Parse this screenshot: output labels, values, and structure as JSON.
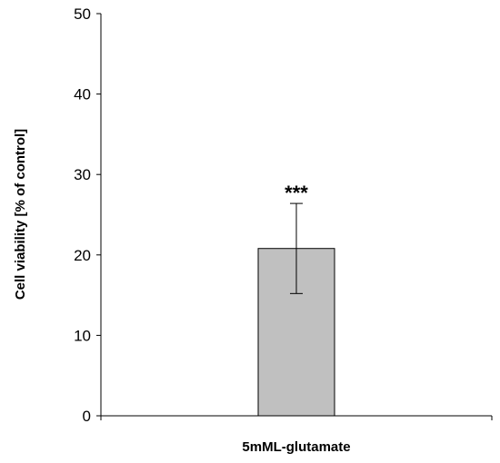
{
  "chart_data": {
    "type": "bar",
    "categories": [
      "5mML-glutamate"
    ],
    "values": [
      20.8
    ],
    "error": [
      5.6
    ],
    "annotations": [
      "***"
    ],
    "xlabel": "5mML-glutamate",
    "ylabel": "Cell viability [% of control]",
    "ylim": [
      0,
      50
    ],
    "yticks": [
      "0",
      "10",
      "20",
      "30",
      "40",
      "50"
    ],
    "bar_color": "#c0c0c0",
    "grid": false
  }
}
